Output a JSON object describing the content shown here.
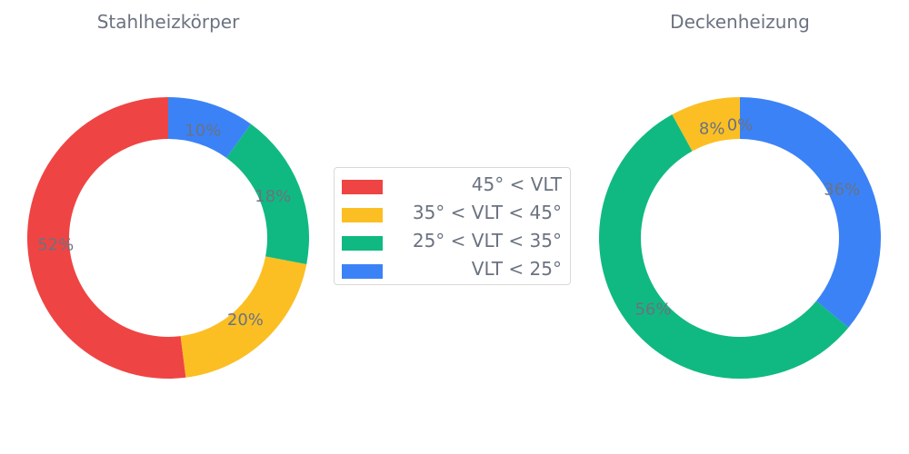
{
  "chart_data": [
    {
      "type": "pie",
      "variant": "donut",
      "title": "Stahlheizkörper",
      "labels": [
        "45° < VLT",
        "35° < VLT < 45°",
        "25° < VLT < 35°",
        "VLT < 25°"
      ],
      "values": [
        52,
        20,
        18,
        10
      ],
      "value_labels": [
        "52%",
        "20%",
        "18%",
        "10%"
      ],
      "colors": [
        "#ef4444",
        "#fbbf24",
        "#10b981",
        "#3b82f6"
      ]
    },
    {
      "type": "pie",
      "variant": "donut",
      "title": "Deckenheizung",
      "labels": [
        "45° < VLT",
        "35° < VLT < 45°",
        "25° < VLT < 35°",
        "VLT < 25°"
      ],
      "values": [
        0,
        8,
        56,
        36
      ],
      "value_labels": [
        "0%",
        "8%",
        "56%",
        "36%"
      ],
      "colors": [
        "#ef4444",
        "#fbbf24",
        "#10b981",
        "#3b82f6"
      ]
    }
  ],
  "legend": {
    "placement": "center",
    "items": [
      {
        "label": "45° < VLT",
        "color": "#ef4444"
      },
      {
        "label": "35° < VLT < 45°",
        "color": "#fbbf24"
      },
      {
        "label": "25° < VLT < 35°",
        "color": "#10b981"
      },
      {
        "label": "VLT < 25°",
        "color": "#3b82f6"
      }
    ]
  }
}
